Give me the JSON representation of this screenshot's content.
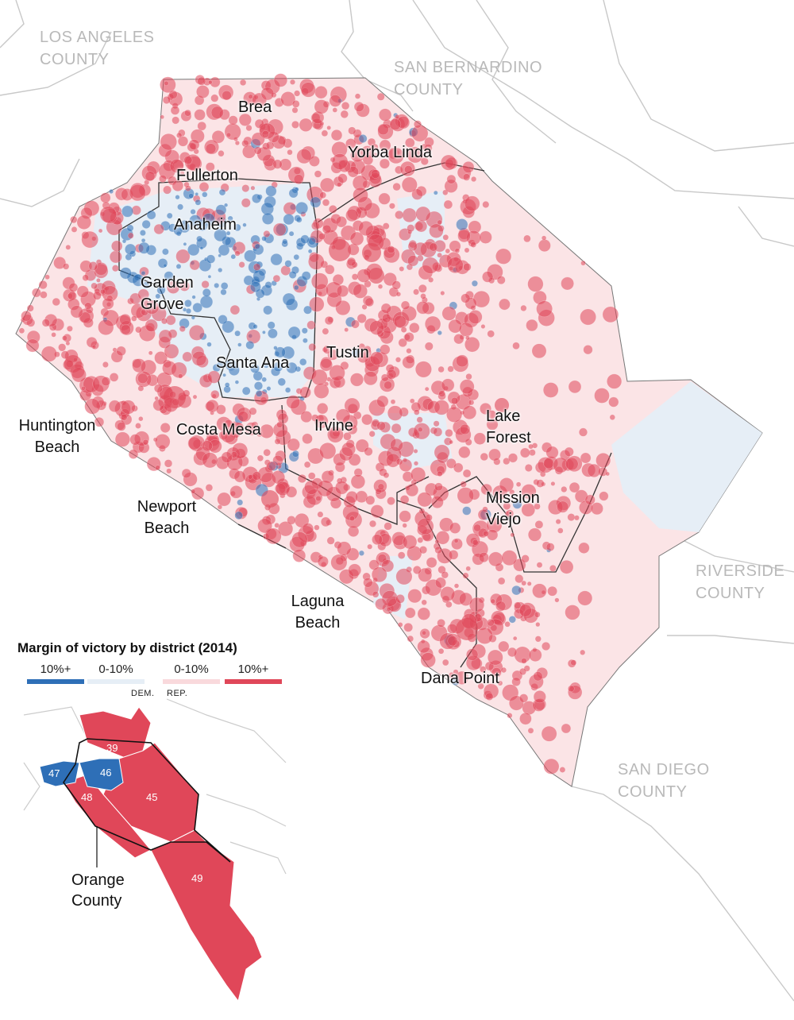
{
  "colors": {
    "dem_strong": "#2e6fb7",
    "dem_lean": "#e6eef6",
    "rep_lean": "#f9d9dc",
    "rep_strong": "#e04759",
    "rep_fill": "#fbe4e6",
    "county_line": "#c8c8c8",
    "district_line": "#333333"
  },
  "counties": {
    "los_angeles": "LOS ANGELES\nCOUNTY",
    "san_bernardino": "SAN BERNARDINO\nCOUNTY",
    "riverside": "RIVERSIDE\nCOUNTY",
    "san_diego": "SAN DIEGO\nCOUNTY"
  },
  "cities": {
    "brea": "Brea",
    "yorba_linda": "Yorba Linda",
    "fullerton": "Fullerton",
    "anaheim": "Anaheim",
    "garden_grove": "Garden\nGrove",
    "tustin": "Tustin",
    "santa_ana": "Santa Ana",
    "huntington_beach": "Huntington\nBeach",
    "costa_mesa": "Costa Mesa",
    "irvine": "Irvine",
    "lake_forest": "Lake\nForest",
    "newport_beach": "Newport\nBeach",
    "mission_viejo": "Mission\nViejo",
    "laguna_beach": "Laguna\nBeach",
    "dana_point": "Dana Point"
  },
  "legend": {
    "title": "Margin of victory by district (2014)",
    "items": [
      {
        "label": "10%+",
        "color": "#2e6fb7"
      },
      {
        "label": "0-10%",
        "color": "#e6eef6"
      },
      {
        "label": "0-10%",
        "color": "#f9d9dc"
      },
      {
        "label": "10%+",
        "color": "#e04759"
      }
    ],
    "dem_label": "DEM.",
    "rep_label": "REP."
  },
  "inset": {
    "label": "Orange\nCounty",
    "districts": [
      {
        "number": "39",
        "party": "rep"
      },
      {
        "number": "46",
        "party": "dem"
      },
      {
        "number": "47",
        "party": "dem"
      },
      {
        "number": "48",
        "party": "rep"
      },
      {
        "number": "45",
        "party": "rep"
      },
      {
        "number": "49",
        "party": "rep"
      }
    ]
  }
}
